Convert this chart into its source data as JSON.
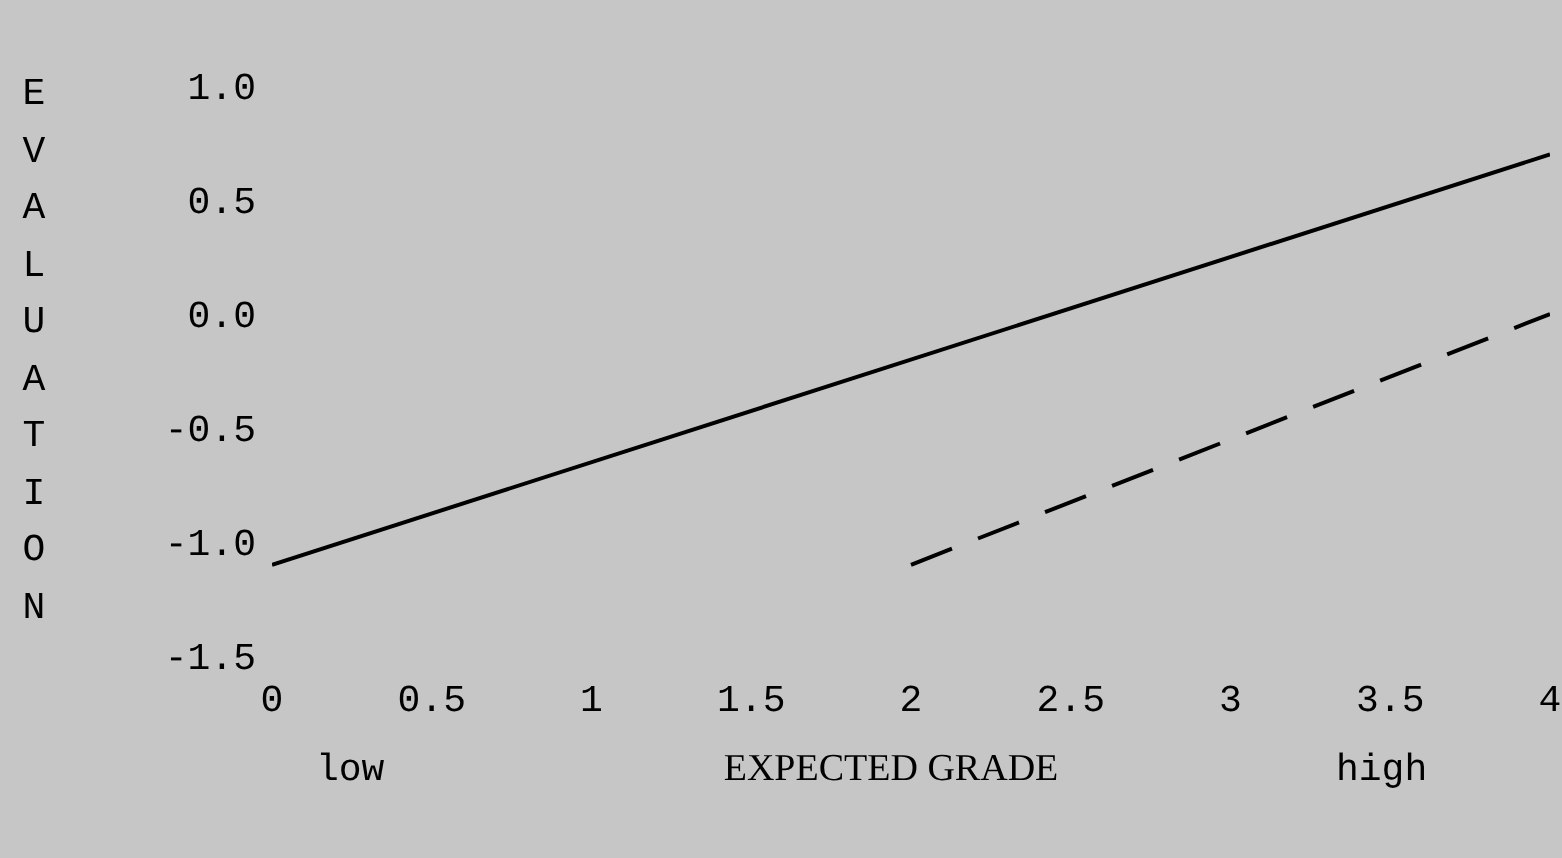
{
  "chart_data": {
    "type": "line",
    "xlabel": "EXPECTED GRADE",
    "ylabel": "EVALUATION",
    "annotations": [
      "low",
      "high"
    ],
    "xlim": [
      0,
      4
    ],
    "ylim": [
      -1.5,
      1.0
    ],
    "xticks": [
      0,
      0.5,
      1,
      1.5,
      2,
      2.5,
      3,
      3.5,
      4
    ],
    "yticks": [
      -1.5,
      {
        "value": -1,
        "label": "-1.0"
      },
      -0.5,
      {
        "value": 0,
        "label": "0.0"
      },
      0.5,
      {
        "value": 1,
        "label": "1.0"
      }
    ],
    "grid": false,
    "marker": "none",
    "tick_labels": "xy",
    "series": [
      {
        "color": "#000000",
        "line_style": "solid",
        "x": [
          0,
          4
        ],
        "values": [
          -1.1,
          0.7
        ]
      },
      {
        "color": "#000000",
        "line_style": "dashed",
        "x": [
          2,
          4
        ],
        "values": [
          -1.1,
          0.0
        ]
      }
    ]
  }
}
